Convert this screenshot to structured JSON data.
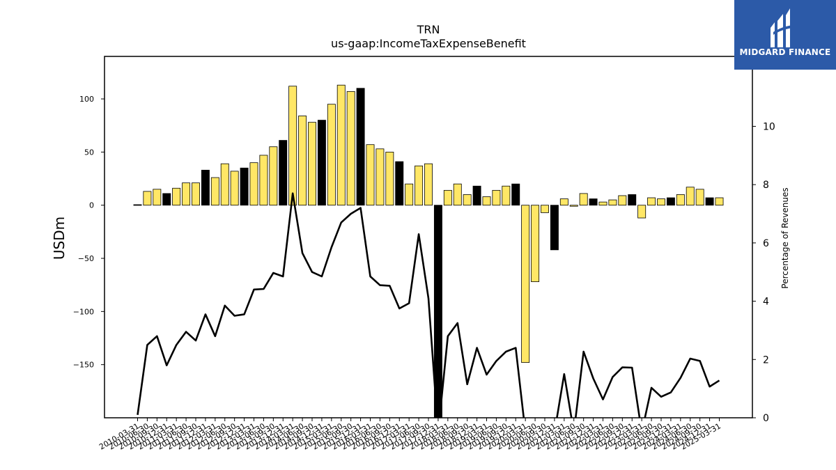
{
  "brand": {
    "name": "MIDGARD FINANCE",
    "bg_color": "#2c5aa8"
  },
  "chart_data": {
    "type": "bar",
    "title": "TRN",
    "subtitle": "us-gaap:IncomeTaxExpenseBenefit",
    "ylabel": "USDm",
    "y2label": "Percentage of Revenues",
    "ylim": [
      -200,
      140
    ],
    "y2lim": [
      0,
      12.4
    ],
    "yticks": [
      -150,
      -100,
      -50,
      0,
      50,
      100
    ],
    "y2ticks": [
      0,
      2,
      4,
      6,
      8,
      10
    ],
    "grid": false,
    "colors": {
      "quarter_bar": "#ffe766",
      "annual_bar": "#000000",
      "bar_edge": "#000000",
      "line": "#000000"
    },
    "categories": [
      "2010-03-31",
      "2010-06-30",
      "2010-09-30",
      "2010-12-31",
      "2011-03-31",
      "2011-06-30",
      "2011-09-30",
      "2011-12-31",
      "2012-03-31",
      "2012-06-30",
      "2012-09-30",
      "2012-12-31",
      "2013-03-31",
      "2013-06-30",
      "2013-09-30",
      "2013-12-31",
      "2014-03-31",
      "2014-06-30",
      "2014-09-30",
      "2014-12-31",
      "2015-03-31",
      "2015-06-30",
      "2015-09-30",
      "2015-12-31",
      "2016-03-31",
      "2016-06-30",
      "2016-09-30",
      "2016-12-31",
      "2017-03-31",
      "2017-06-30",
      "2017-09-30",
      "2017-12-31",
      "2018-03-31",
      "2018-06-30",
      "2018-09-30",
      "2018-12-31",
      "2019-03-31",
      "2019-06-30",
      "2019-09-30",
      "2019-12-31",
      "2020-03-31",
      "2020-06-30",
      "2020-09-30",
      "2020-12-31",
      "2021-03-31",
      "2021-06-30",
      "2021-09-30",
      "2021-12-31",
      "2022-03-31",
      "2022-06-30",
      "2022-09-30",
      "2022-12-31",
      "2023-03-31",
      "2023-06-30",
      "2023-09-30",
      "2023-12-31",
      "2024-03-31",
      "2024-06-30",
      "2024-09-30",
      "2024-12-31",
      "2025-03-31"
    ],
    "series": [
      {
        "kind": "bar",
        "values": [
          0.5,
          13,
          15,
          11,
          16,
          21,
          21,
          33,
          26,
          39,
          32,
          35,
          40,
          47,
          55,
          61,
          112,
          84,
          78,
          80,
          95,
          113,
          107,
          110,
          57,
          53,
          50,
          41,
          20,
          37,
          39,
          -200,
          14,
          20,
          10,
          18,
          8,
          14,
          18,
          20,
          -148,
          -72,
          -7,
          -42,
          6,
          -1,
          11,
          6,
          3,
          5,
          9,
          10,
          -12,
          7,
          6,
          7,
          10,
          17,
          15,
          7,
          7
        ],
        "annual": [
          1,
          0,
          0,
          1,
          0,
          0,
          0,
          1,
          0,
          0,
          0,
          1,
          0,
          0,
          0,
          1,
          0,
          0,
          0,
          1,
          0,
          0,
          0,
          1,
          0,
          0,
          0,
          1,
          0,
          0,
          0,
          1,
          0,
          0,
          0,
          1,
          0,
          0,
          0,
          1,
          0,
          0,
          0,
          1,
          0,
          0,
          0,
          1,
          0,
          0,
          0,
          1,
          0,
          0,
          0,
          1,
          0,
          0,
          0,
          1,
          0
        ]
      },
      {
        "kind": "line",
        "axis": "right",
        "values": [
          0.1,
          2.5,
          2.8,
          1.8,
          2.5,
          2.95,
          2.65,
          3.55,
          2.8,
          3.85,
          3.5,
          3.55,
          4.4,
          4.42,
          4.97,
          4.85,
          7.7,
          5.65,
          5.0,
          4.85,
          5.85,
          6.7,
          7.0,
          7.2,
          4.85,
          4.55,
          4.53,
          3.75,
          3.93,
          6.3,
          4.1,
          -0.5,
          2.8,
          3.25,
          1.15,
          2.4,
          1.48,
          1.95,
          2.27,
          2.4,
          -0.5,
          -0.5,
          -0.5,
          -0.5,
          1.5,
          -0.5,
          2.27,
          1.35,
          0.63,
          1.4,
          1.73,
          1.72,
          -0.5,
          1.03,
          0.72,
          0.87,
          1.37,
          2.03,
          1.95,
          1.07,
          1.28
        ]
      }
    ]
  }
}
